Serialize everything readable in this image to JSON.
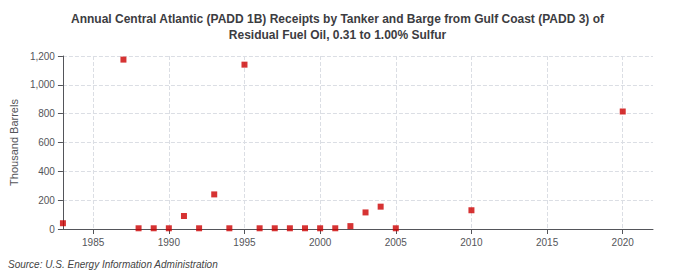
{
  "chart_data": {
    "type": "scatter",
    "title": "Annual Central Atlantic (PADD 1B) Receipts by Tanker and Barge from Gulf Coast (PADD 3) of\nResidual Fuel Oil, 0.31 to 1.00% Sulfur",
    "ylabel": "Thousand Barrels",
    "annotations": [
      "Source: U.S. Energy Information Administration"
    ],
    "x": [
      1983,
      1987,
      1988,
      1989,
      1990,
      1991,
      1992,
      1993,
      1994,
      1995,
      1996,
      1997,
      1998,
      1999,
      2000,
      2001,
      2002,
      2003,
      2004,
      2005,
      2010,
      2020
    ],
    "values": [
      40,
      1175,
      5,
      5,
      5,
      90,
      5,
      240,
      5,
      1140,
      5,
      5,
      5,
      5,
      5,
      5,
      20,
      115,
      155,
      5,
      130,
      815
    ],
    "color": "#cc0000",
    "marker": "square",
    "xlim": [
      1983,
      2022
    ],
    "xticks": [
      1985,
      1990,
      1995,
      2000,
      2005,
      2010,
      2015,
      2020
    ],
    "ylim": [
      0,
      1200
    ],
    "yticks": [
      0,
      200,
      400,
      600,
      800,
      {
        "value": 1000,
        "label": "1,000"
      },
      {
        "value": 1200,
        "label": "1,200"
      }
    ],
    "grid": true
  }
}
